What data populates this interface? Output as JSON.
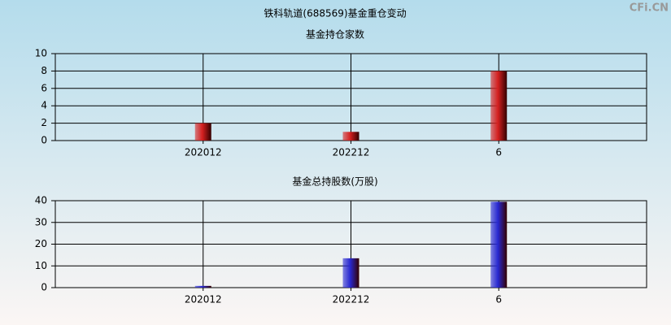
{
  "title": "铁科轨道(688569)基金重仓变动",
  "watermark": "CFi.CN",
  "chart_data": [
    {
      "type": "bar",
      "title": "基金持仓家数",
      "categories": [
        "202012",
        "202212",
        "6"
      ],
      "values": [
        2,
        1,
        8
      ],
      "color": "#d42020",
      "ylim": [
        0,
        10
      ],
      "yticks": [
        0,
        2,
        4,
        6,
        8,
        10
      ],
      "grid": true
    },
    {
      "type": "bar",
      "title": "基金总持股数(万股)",
      "categories": [
        "202012",
        "202212",
        "6"
      ],
      "values": [
        0.8,
        13.5,
        39.5
      ],
      "color": "#2828d0",
      "ylim": [
        0,
        40
      ],
      "yticks": [
        0,
        10,
        20,
        30,
        40
      ],
      "grid": true
    }
  ]
}
